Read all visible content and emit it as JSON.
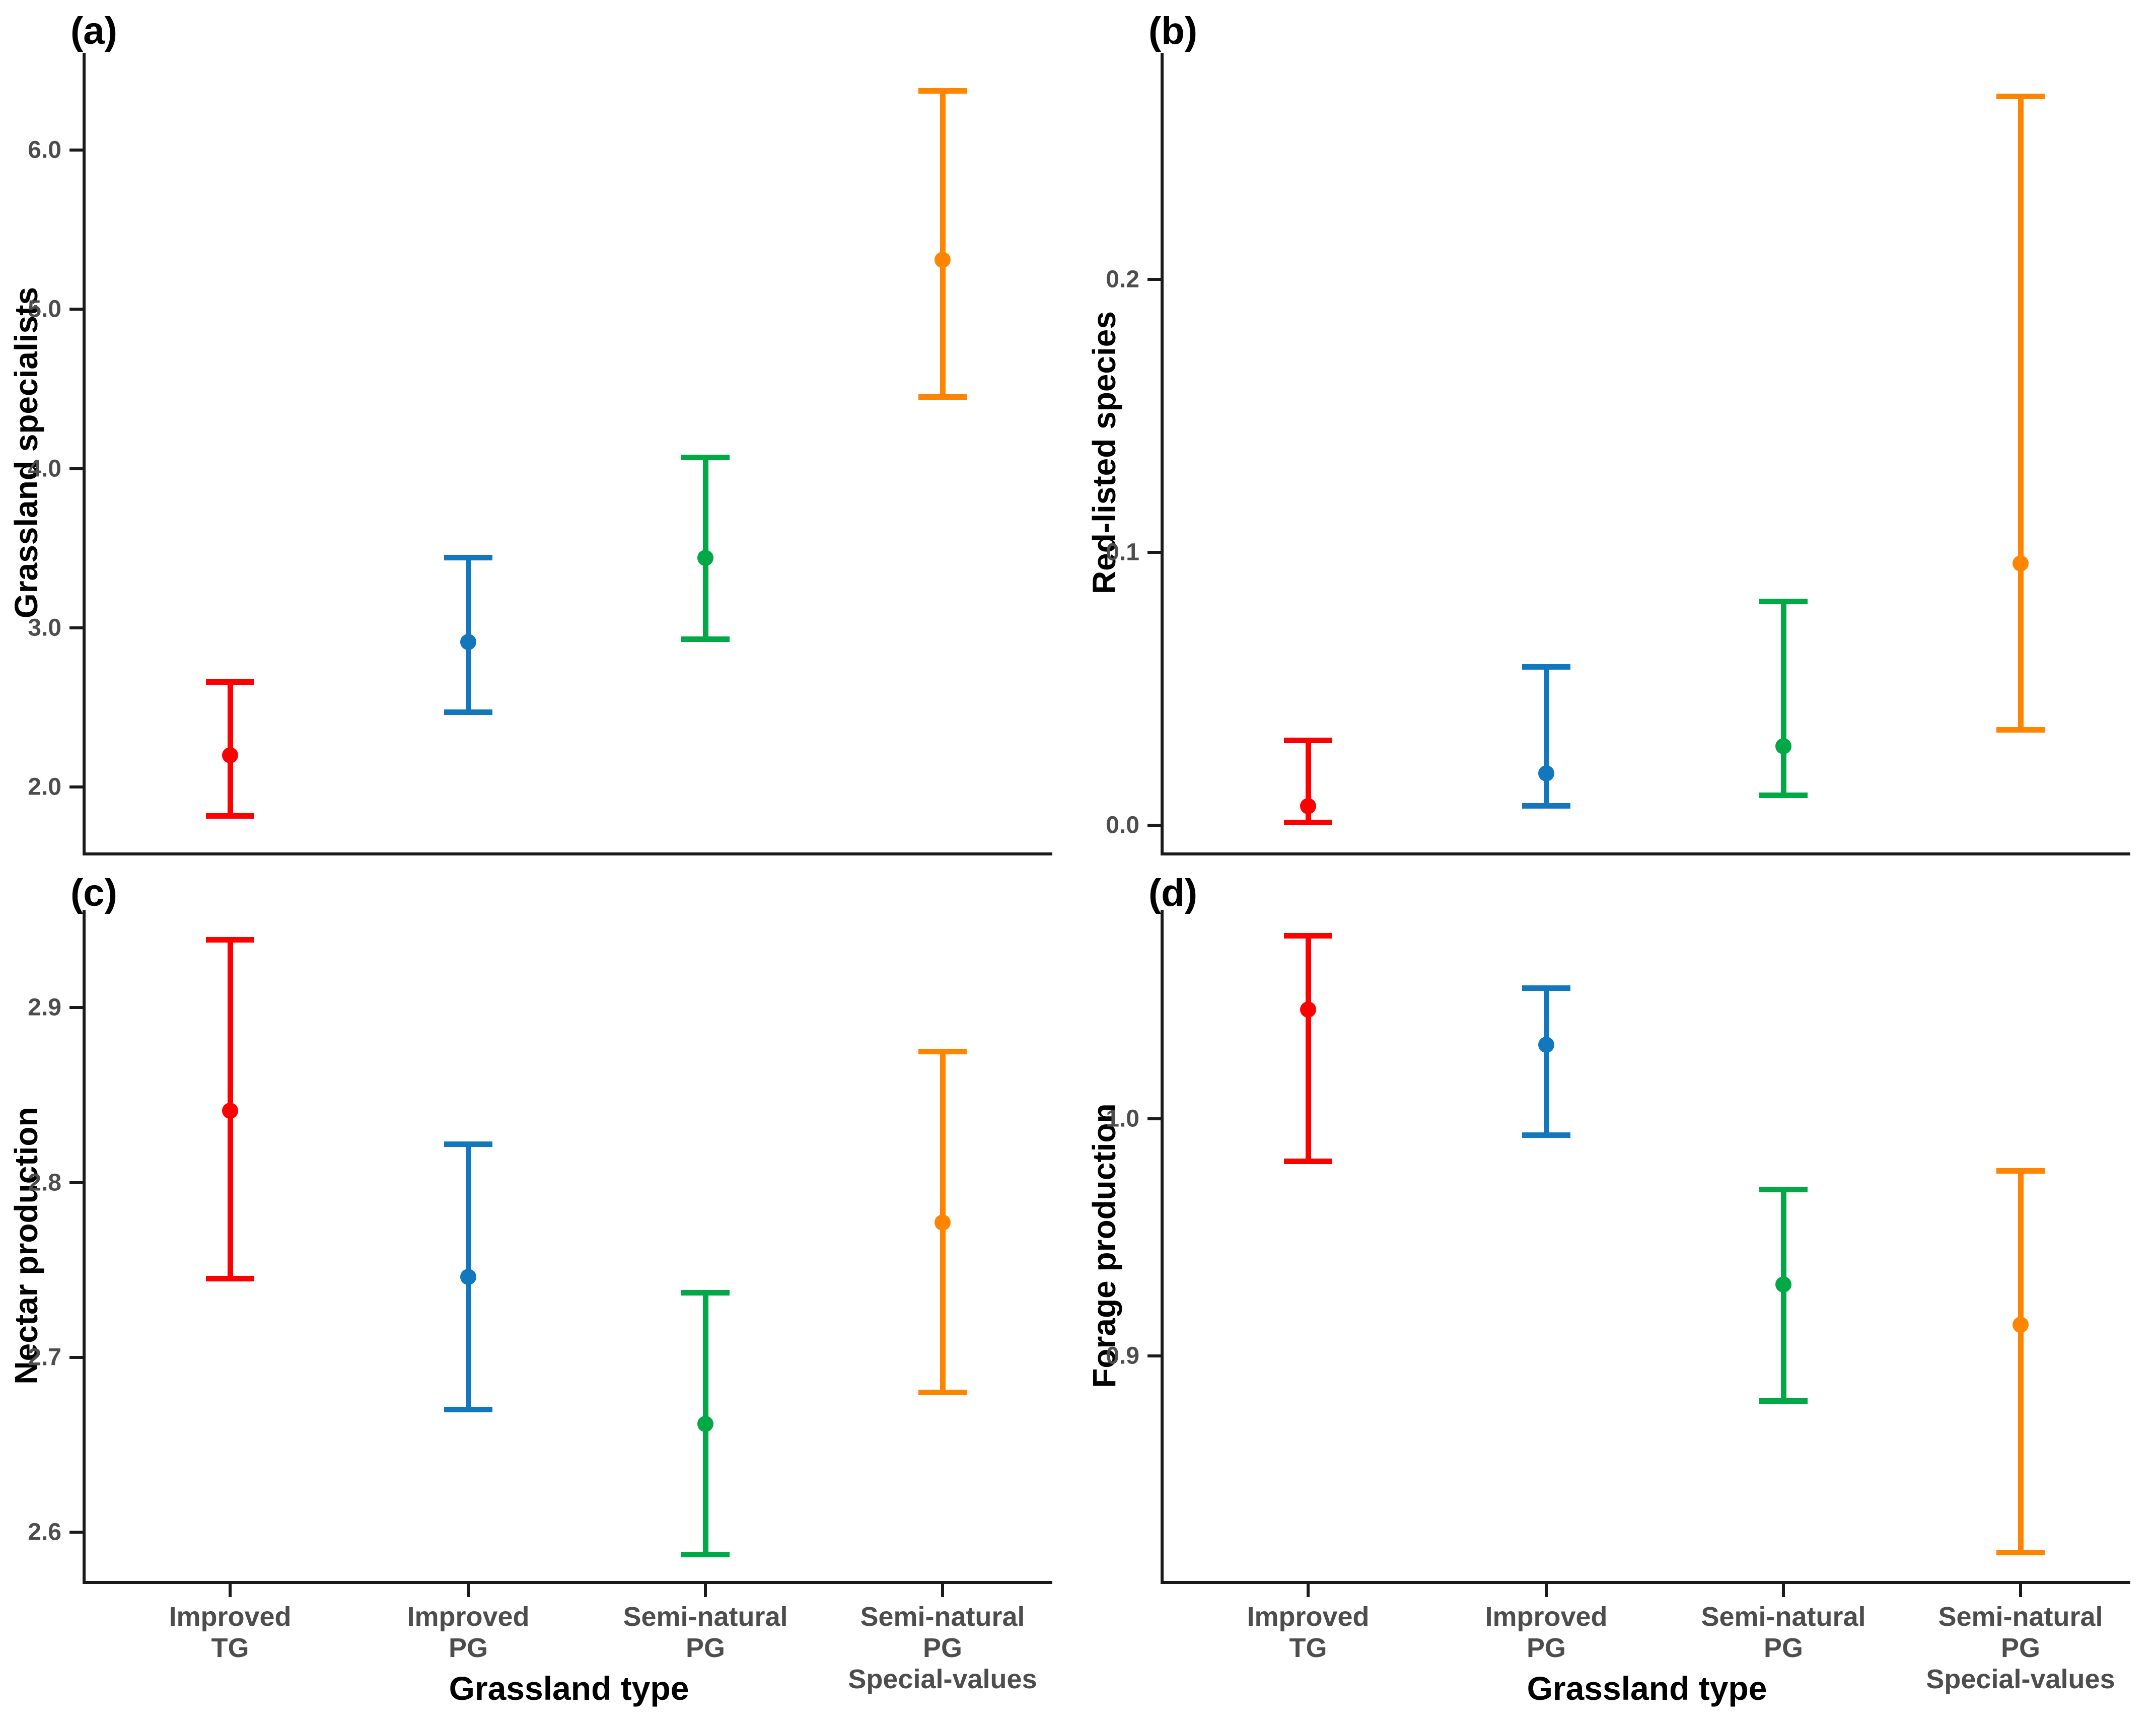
{
  "figure": {
    "background": "#ffffff",
    "axis_color": "#1a1a1a",
    "tick_text_color": "#4d4d4d",
    "title_text_color": "#000000",
    "x_axis_title": "Grassland type",
    "categories": [
      {
        "name": "Improved TG",
        "lines": [
          "Improved",
          "TG"
        ],
        "color": "#ff0000"
      },
      {
        "name": "Improved PG",
        "lines": [
          "Improved",
          "PG"
        ],
        "color": "#1377be"
      },
      {
        "name": "Semi-natural PG",
        "lines": [
          "Semi-natural",
          "PG"
        ],
        "color": "#00a846"
      },
      {
        "name": "Semi-natural PG Special-values",
        "lines": [
          "Semi-natural",
          "PG",
          "Special-values"
        ],
        "color": "#ff8500"
      }
    ]
  },
  "chart_data": [
    {
      "panel_label": "(a)",
      "type": "scatter",
      "ylabel": "Grassland specialists",
      "xlabel": "Grassland type",
      "categories": [
        "Improved TG",
        "Improved PG",
        "Semi-natural PG",
        "Semi-natural PG Special-values"
      ],
      "series": [
        {
          "name": "estimate",
          "values": [
            2.2,
            2.91,
            3.44,
            5.31
          ]
        },
        {
          "name": "ci_lower",
          "values": [
            1.82,
            2.47,
            2.93,
            4.45
          ]
        },
        {
          "name": "ci_upper",
          "values": [
            2.66,
            3.44,
            4.07,
            6.37
          ]
        }
      ],
      "yticks": [
        2.0,
        3.0,
        4.0,
        5.0,
        6.0
      ],
      "ytick_labels": [
        "2.0",
        "3.0",
        "4.0",
        "5.0",
        "6.0"
      ],
      "ylim": [
        1.59,
        6.61
      ],
      "grid": false,
      "x_labels_visible": false
    },
    {
      "panel_label": "(b)",
      "type": "scatter",
      "ylabel": "Red-listed species",
      "xlabel": "Grassland type",
      "categories": [
        "Improved TG",
        "Improved PG",
        "Semi-natural PG",
        "Semi-natural PG Special-values"
      ],
      "series": [
        {
          "name": "estimate",
          "values": [
            0.007,
            0.019,
            0.029,
            0.096
          ]
        },
        {
          "name": "ci_lower",
          "values": [
            0.001,
            0.007,
            0.011,
            0.035
          ]
        },
        {
          "name": "ci_upper",
          "values": [
            0.031,
            0.058,
            0.082,
            0.267
          ]
        }
      ],
      "yticks": [
        0.0,
        0.1,
        0.2
      ],
      "ytick_labels": [
        "0.0",
        "0.1",
        "0.2"
      ],
      "ylim": [
        -0.01,
        0.283
      ],
      "grid": false,
      "x_labels_visible": false
    },
    {
      "panel_label": "(c)",
      "type": "scatter",
      "ylabel": "Nectar production",
      "xlabel": "Grassland type",
      "categories": [
        "Improved TG",
        "Improved PG",
        "Semi-natural PG",
        "Semi-natural PG Special-values"
      ],
      "series": [
        {
          "name": "estimate",
          "values": [
            2.841,
            2.746,
            2.662,
            2.777
          ]
        },
        {
          "name": "ci_lower",
          "values": [
            2.745,
            2.67,
            2.587,
            2.68
          ]
        },
        {
          "name": "ci_upper",
          "values": [
            2.939,
            2.822,
            2.737,
            2.875
          ]
        }
      ],
      "yticks": [
        2.6,
        2.7,
        2.8,
        2.9
      ],
      "ytick_labels": [
        "2.6",
        "2.7",
        "2.8",
        "2.9"
      ],
      "ylim": [
        2.572,
        2.956
      ],
      "grid": false,
      "x_labels_visible": true
    },
    {
      "panel_label": "(d)",
      "type": "scatter",
      "ylabel": "Forage production",
      "xlabel": "Grassland type",
      "categories": [
        "Improved TG",
        "Improved PG",
        "Semi-natural PG",
        "Semi-natural PG Special-values"
      ],
      "series": [
        {
          "name": "estimate",
          "values": [
            1.046,
            1.031,
            0.93,
            0.913
          ]
        },
        {
          "name": "ci_lower",
          "values": [
            0.982,
            0.993,
            0.881,
            0.817
          ]
        },
        {
          "name": "ci_upper",
          "values": [
            1.077,
            1.055,
            0.97,
            0.978
          ]
        }
      ],
      "yticks": [
        0.9,
        1.0
      ],
      "ytick_labels": [
        "0.9",
        "1.0"
      ],
      "ylim": [
        0.805,
        1.088
      ],
      "grid": false,
      "x_labels_visible": true
    }
  ]
}
